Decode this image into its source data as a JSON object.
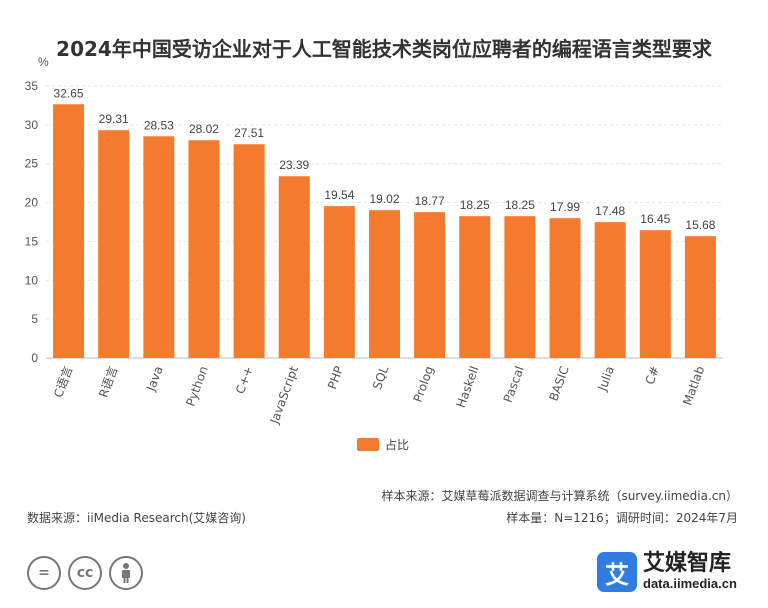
{
  "chart_data": {
    "type": "bar",
    "title": "2024年中国受访企业对于人工智能技术类岗位应聘者的编程语言类型要求",
    "ylabel": "%",
    "xlabel": "",
    "ylim": [
      0,
      35
    ],
    "yticks": [
      0,
      5,
      10,
      15,
      20,
      25,
      30,
      35
    ],
    "grid": true,
    "legend_position": "bottom-center",
    "categories": [
      "C语言",
      "R语言",
      "Java",
      "Python",
      "C++",
      "JavaScript",
      "PHP",
      "SQL",
      "Prolog",
      "Haskell",
      "Pascal",
      "BASIC",
      "Julia",
      "C#",
      "Matlab"
    ],
    "series": [
      {
        "name": "占比",
        "color": "#f47a2e",
        "values": [
          32.65,
          29.31,
          28.53,
          28.02,
          27.51,
          23.39,
          19.54,
          19.02,
          18.77,
          18.25,
          18.25,
          17.99,
          17.48,
          16.45,
          15.68
        ]
      }
    ]
  },
  "footer": {
    "sample_source": "样本来源：艾媒草莓派数据调查与计算系统（survey.iimedia.cn）",
    "sample_info": "样本量：N=1216；调研时间：2024年7月",
    "data_source": "数据来源：iiMedia Research(艾媒咨询)"
  },
  "license_icons": [
    "equals-icon",
    "cc-icon",
    "person-icon"
  ],
  "license_glyphs": {
    "equals": "=",
    "cc": "cc"
  },
  "logo": {
    "mark": "艾",
    "name": "艾媒智库",
    "url": "data.iimedia.cn",
    "color": "#2f7de1"
  }
}
